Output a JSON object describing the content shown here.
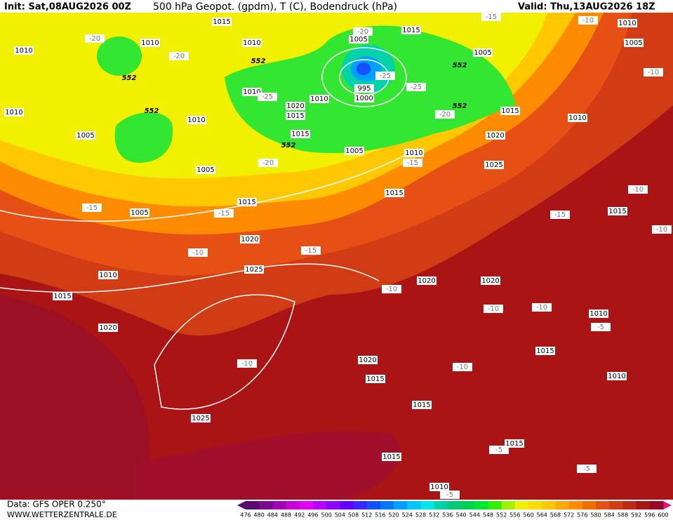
{
  "header": {
    "init": "Init: Sat,08AUG2026 00Z",
    "title": "500 hPa Geopot. (gpdm), T (C), Bodendruck (hPa)",
    "valid": "Valid: Thu,13AUG2026 18Z"
  },
  "footer": {
    "data": "Data: GFS OPER 0.250°",
    "site": "WWW.WETTERZENTRALE.DE"
  },
  "legend": {
    "labels": [
      476,
      480,
      484,
      488,
      492,
      496,
      500,
      504,
      508,
      512,
      516,
      520,
      524,
      528,
      532,
      536,
      540,
      544,
      548,
      552,
      556,
      560,
      564,
      568,
      572,
      576,
      580,
      584,
      588,
      592,
      596,
      600
    ],
    "colors": [
      "#5a0a6e",
      "#7a0a8c",
      "#a000b4",
      "#c800d2",
      "#e600f0",
      "#b400ff",
      "#8c00ff",
      "#6400ff",
      "#3c28ff",
      "#1450ff",
      "#0078ff",
      "#00a0ff",
      "#00c8ff",
      "#00e6e6",
      "#00d2aa",
      "#00c878",
      "#00d250",
      "#00e632",
      "#32f000",
      "#a0f000",
      "#f0f000",
      "#ffdc00",
      "#ffc800",
      "#ffaa00",
      "#ff8c00",
      "#f06e00",
      "#e65014",
      "#d23c14",
      "#be2814",
      "#aa1414",
      "#960a28"
    ]
  },
  "map": {
    "isobars": [
      1015,
      1010,
      1010,
      1010,
      1005,
      1015,
      1005,
      1010,
      1005,
      995,
      1000,
      1010,
      1010,
      1020,
      1015,
      1015,
      1010,
      1005,
      1005,
      1010,
      1015,
      1010,
      1020,
      1025,
      1010,
      1005,
      1015,
      1015,
      1005,
      1020,
      1025,
      1010,
      1015,
      1020,
      1020,
      1020,
      1015,
      1010,
      1015,
      1010,
      1020,
      1015,
      1015,
      1025,
      1015,
      1015,
      1010
    ],
    "temperatures": [
      -20,
      -20,
      -20,
      -25,
      -25,
      -25,
      -20,
      -15,
      -10,
      -10,
      -20,
      -15,
      -15,
      -15,
      -10,
      -15,
      -10,
      -15,
      -10,
      -10,
      -10,
      -10,
      -5,
      -10,
      -10,
      -5,
      -5,
      -5
    ],
    "contours": [
      552,
      552,
      552,
      552,
      552,
      552
    ]
  }
}
